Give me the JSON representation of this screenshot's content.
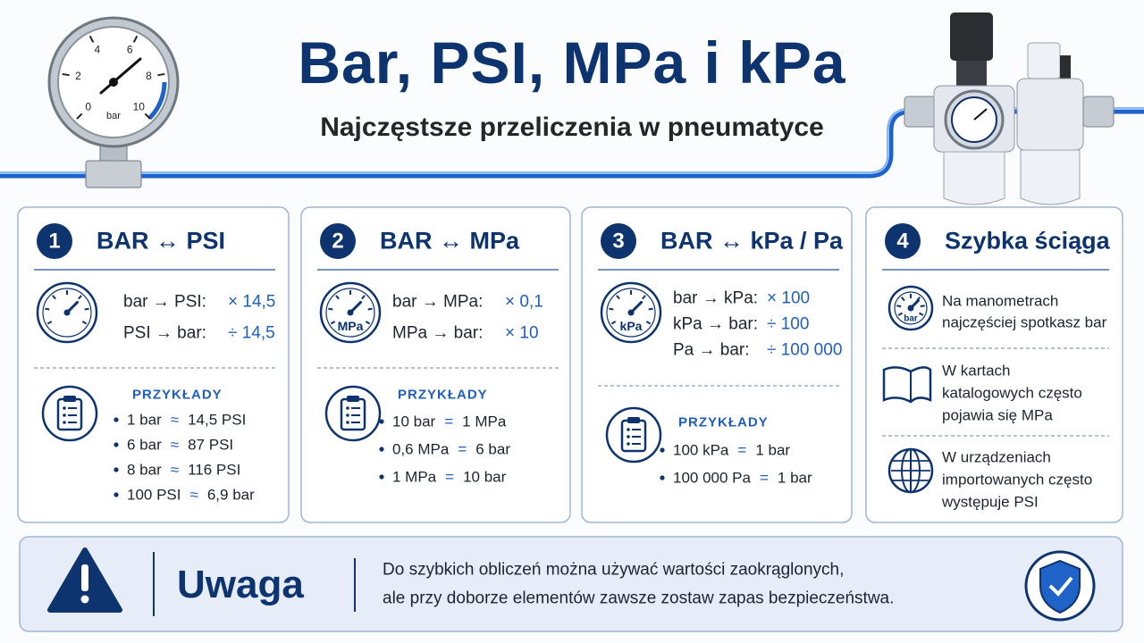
{
  "header": {
    "title": "Bar, PSI, MPa i kPa",
    "subtitle": "Najczęstsze przeliczenia w pneumatyce",
    "gauge": {
      "labels": [
        "0",
        "2",
        "4",
        "6",
        "8",
        "10"
      ],
      "unit": "bar"
    }
  },
  "cards": [
    {
      "number": "1",
      "title": "BAR ↔ PSI",
      "conversions": [
        [
          "bar → PSI:",
          "× 14,5"
        ],
        [
          "PSI → bar:",
          "÷ 14,5"
        ]
      ],
      "examples_title": "PRZYKŁADY",
      "examples": [
        [
          "1 bar",
          "≈",
          "14,5 PSI"
        ],
        [
          "6 bar",
          "≈",
          "87 PSI"
        ],
        [
          "8 bar",
          "≈",
          "116 PSI"
        ],
        [
          "100 PSI",
          "≈",
          "6,9 bar"
        ]
      ]
    },
    {
      "number": "2",
      "title": "BAR ↔ MPa",
      "icon_label": "MPa",
      "conversions": [
        [
          "bar → MPa:",
          "× 0,1"
        ],
        [
          "MPa → bar:",
          "× 10"
        ]
      ],
      "examples_title": "PRZYKŁADY",
      "examples": [
        [
          "10 bar",
          "=",
          "1 MPa"
        ],
        [
          "0,6 MPa",
          "=",
          "6 bar"
        ],
        [
          "1 MPa",
          "=",
          "10 bar"
        ]
      ]
    },
    {
      "number": "3",
      "title": "BAR ↔ kPa / Pa",
      "icon_label": "kPa",
      "conversions": [
        [
          "bar → kPa:",
          "× 100"
        ],
        [
          "kPa → bar:",
          "÷ 100"
        ],
        [
          "Pa → bar:",
          "÷ 100 000"
        ]
      ],
      "examples_title": "PRZYKŁADY",
      "examples": [
        [
          "100 kPa",
          "=",
          "1 bar"
        ],
        [
          "100 000 Pa",
          "=",
          "1 bar"
        ]
      ]
    },
    {
      "number": "4",
      "title": "Szybka ściąga",
      "items": [
        {
          "icon_label": "bar",
          "lines": [
            "Na manometrach",
            "najczęściej spotkasz bar"
          ]
        },
        {
          "lines": [
            "W kartach",
            "katalogowych często",
            "pojawia się MPa"
          ]
        },
        {
          "lines": [
            "W urządzeniach",
            "importowanych często",
            "występuje PSI"
          ]
        }
      ]
    }
  ],
  "warning": {
    "title": "Uwaga",
    "lines": [
      "Do szybkich obliczeń można używać wartości zaokrąglonych,",
      "ale przy doborze elementów zawsze zostaw zapas bezpieczeństwa."
    ]
  }
}
